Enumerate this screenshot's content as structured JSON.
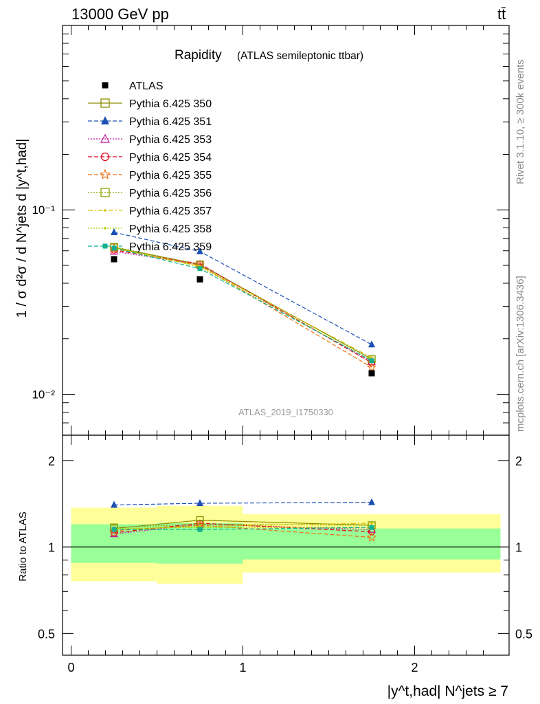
{
  "header": {
    "energy_label": "13000 GeV pp",
    "process_label": "tt̄"
  },
  "side_labels": {
    "rivet": "Rivet 3.1.10, ≥ 300k events",
    "mcplots": "mcplots.cern.ch [arXiv:1306.3436]"
  },
  "chart_data": [
    {
      "type": "line",
      "yscale": "log",
      "title": "Rapidity",
      "subtitle": "(ATLAS semileptonic ttbar)",
      "watermark": "ATLAS_2019_I1750330",
      "ylabel": "1 / σ d²σ / d N^jets d |y^t,had|",
      "ylim": [
        0.006,
        1.0
      ],
      "xlim": [
        -0.05,
        2.55
      ],
      "ytick_labels": [
        "10⁻²",
        "10⁻¹"
      ],
      "ytick_values": [
        0.01,
        0.1
      ],
      "x": [
        0.25,
        0.75,
        1.75
      ],
      "x_edges": [
        0,
        0.5,
        1.0,
        2.5
      ],
      "legend_position": "top-left",
      "data": {
        "name": "ATLAS",
        "values": [
          0.054,
          0.042,
          0.013
        ]
      },
      "series": [
        {
          "name": "Pythia 6.425 350",
          "color": "#8b8b00",
          "style": "solid",
          "marker": "open-square",
          "values": [
            0.0625,
            0.0505,
            0.0155
          ]
        },
        {
          "name": "Pythia 6.425 351",
          "color": "#1a4fb5",
          "style": "dashed",
          "marker": "filled-triangle",
          "values": [
            0.0755,
            0.0595,
            0.0186
          ]
        },
        {
          "name": "Pythia 6.425 353",
          "color": "#c0189a",
          "style": "dotted",
          "marker": "open-triangle",
          "values": [
            0.0595,
            0.0505,
            0.015
          ]
        },
        {
          "name": "Pythia 6.425 354",
          "color": "#e0001a",
          "style": "dashed",
          "marker": "open-circle",
          "values": [
            0.0605,
            0.051,
            0.0148
          ]
        },
        {
          "name": "Pythia 6.425 355",
          "color": "#f07010",
          "style": "dashed",
          "marker": "open-star",
          "values": [
            0.0615,
            0.05,
            0.014
          ]
        },
        {
          "name": "Pythia 6.425 356",
          "color": "#8ca000",
          "style": "dotted",
          "marker": "open-square",
          "values": [
            0.063,
            0.0505,
            0.0155
          ]
        },
        {
          "name": "Pythia 6.425 357",
          "color": "#d4c200",
          "style": "dashdot",
          "marker": "small-dot",
          "values": [
            0.062,
            0.0495,
            0.0158
          ]
        },
        {
          "name": "Pythia 6.425 358",
          "color": "#a8d000",
          "style": "dotted",
          "marker": "small-dot",
          "values": [
            0.0625,
            0.049,
            0.0152
          ]
        },
        {
          "name": "Pythia 6.425 359",
          "color": "#10b090",
          "style": "dashed",
          "marker": "filled-square",
          "values": [
            0.062,
            0.048,
            0.0152
          ]
        }
      ]
    },
    {
      "type": "line",
      "yscale": "log",
      "ylabel": "Ratio to ATLAS",
      "xlabel": "|y^t,had| N^jets ≥ 7",
      "ylim": [
        0.42,
        2.45
      ],
      "xlim": [
        -0.05,
        2.55
      ],
      "ytick_labels": [
        "0.5",
        "1",
        "2"
      ],
      "ytick_values": [
        0.5,
        1,
        2
      ],
      "xtick_labels": [
        "0",
        "1",
        "2"
      ],
      "xtick_values": [
        0,
        1,
        2
      ],
      "reference": 1.0,
      "bands": {
        "yellow": {
          "color": "#ffff99",
          "bins": [
            [
              0,
              0.5,
              0.76,
              1.37
            ],
            [
              0.5,
              1.0,
              0.745,
              1.39
            ],
            [
              1.0,
              2.5,
              0.815,
              1.3
            ]
          ]
        },
        "green": {
          "color": "#99ff99",
          "bins": [
            [
              0,
              0.5,
              0.88,
              1.2
            ],
            [
              0.5,
              1.0,
              0.875,
              1.21
            ],
            [
              1.0,
              2.5,
              0.905,
              1.16
            ]
          ]
        }
      },
      "series": [
        {
          "name": "Pythia 6.425 350",
          "values": [
            1.16,
            1.24,
            1.19
          ]
        },
        {
          "name": "Pythia 6.425 351",
          "values": [
            1.4,
            1.42,
            1.43
          ]
        },
        {
          "name": "Pythia 6.425 353",
          "values": [
            1.11,
            1.2,
            1.15
          ]
        },
        {
          "name": "Pythia 6.425 354",
          "values": [
            1.12,
            1.21,
            1.13
          ]
        },
        {
          "name": "Pythia 6.425 355",
          "values": [
            1.14,
            1.19,
            1.08
          ]
        },
        {
          "name": "Pythia 6.425 356",
          "values": [
            1.17,
            1.2,
            1.19
          ]
        },
        {
          "name": "Pythia 6.425 357",
          "values": [
            1.15,
            1.18,
            1.21
          ]
        },
        {
          "name": "Pythia 6.425 358",
          "values": [
            1.16,
            1.17,
            1.17
          ]
        },
        {
          "name": "Pythia 6.425 359",
          "values": [
            1.15,
            1.15,
            1.17
          ]
        }
      ]
    }
  ]
}
